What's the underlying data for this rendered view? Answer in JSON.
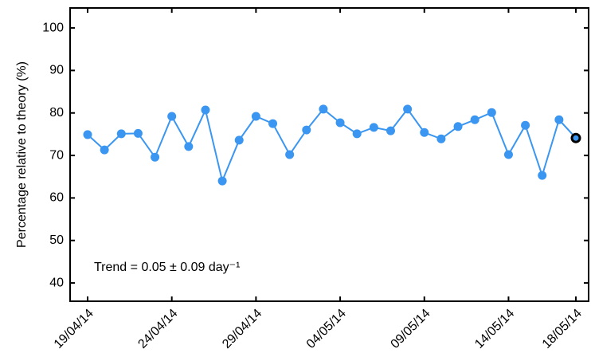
{
  "chart_data": {
    "type": "line",
    "ylabel": "Percentage relative to theory (%)",
    "annotation": "Trend = 0.05 ± 0.09 day⁻¹",
    "categories": [
      "19/04/14",
      null,
      null,
      null,
      null,
      "24/04/14",
      null,
      null,
      null,
      null,
      "29/04/14",
      null,
      null,
      null,
      null,
      "04/05/14",
      null,
      null,
      null,
      null,
      "09/05/14",
      null,
      null,
      null,
      null,
      "14/05/14",
      null,
      null,
      null,
      "18/05/14"
    ],
    "values": [
      74.9,
      71.3,
      75.1,
      75.2,
      69.6,
      79.2,
      72.1,
      80.7,
      64.0,
      73.6,
      79.2,
      77.5,
      70.2,
      76.0,
      80.9,
      77.7,
      75.1,
      76.6,
      75.8,
      80.9,
      75.4,
      73.9,
      76.8,
      78.4,
      80.1,
      70.2,
      77.1,
      65.3,
      78.4,
      74.1
    ],
    "color": "#3a96f0",
    "ylim": [
      35.7,
      104.7
    ],
    "yticks": [
      40,
      50,
      60,
      70,
      80,
      90,
      100
    ]
  }
}
